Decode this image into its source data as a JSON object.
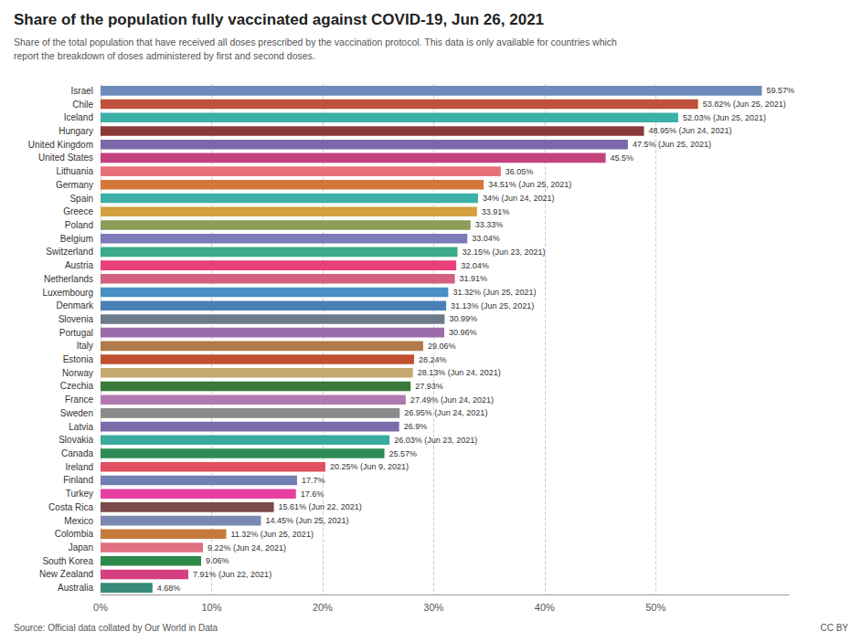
{
  "chart_data": {
    "type": "bar",
    "orientation": "horizontal",
    "title": "Share of the population fully vaccinated against COVID-19, Jun 26, 2021",
    "subtitle": "Share of the total population that have received all doses prescribed by the vaccination protocol. This data is only available for countries which\nreport the breakdown of doses administered by first and second doses.",
    "annotations": [
      "Source: Official data collated by Our World in Data",
      "CC BY"
    ],
    "categories": [
      "Israel",
      "Chile",
      "Iceland",
      "Hungary",
      "United Kingdom",
      "United States",
      "Lithuania",
      "Germany",
      "Spain",
      "Greece",
      "Poland",
      "Belgium",
      "Switzerland",
      "Austria",
      "Netherlands",
      "Luxembourg",
      "Denmark",
      "Slovenia",
      "Portugal",
      "Italy",
      "Estonia",
      "Norway",
      "Czechia",
      "France",
      "Sweden",
      "Latvia",
      "Slovakia",
      "Canada",
      "Ireland",
      "Finland",
      "Turkey",
      "Costa Rica",
      "Mexico",
      "Colombia",
      "Japan",
      "South Korea",
      "New Zealand",
      "Australia"
    ],
    "values": [
      59.57,
      53.82,
      52.03,
      48.95,
      47.5,
      45.5,
      36.05,
      34.51,
      34.0,
      33.91,
      33.33,
      33.04,
      32.15,
      32.04,
      31.91,
      31.32,
      31.13,
      30.99,
      30.96,
      29.06,
      28.24,
      28.13,
      27.93,
      27.49,
      26.95,
      26.9,
      26.03,
      25.57,
      20.25,
      17.7,
      17.6,
      15.61,
      14.45,
      11.32,
      9.22,
      9.06,
      7.91,
      4.68
    ],
    "value_labels": [
      "59.57%",
      "53.82% (Jun 25, 2021)",
      "52.03% (Jun 25, 2021)",
      "48.95% (Jun 24, 2021)",
      "47.5% (Jun 25, 2021)",
      "45.5%",
      "36.05%",
      "34.51% (Jun 25, 2021)",
      "34% (Jun 24, 2021)",
      "33.91%",
      "33.33%",
      "33.04%",
      "32.15% (Jun 23, 2021)",
      "32.04%",
      "31.91%",
      "31.32% (Jun 25, 2021)",
      "31.13% (Jun 25, 2021)",
      "30.99%",
      "30.96%",
      "29.06%",
      "28.24%",
      "28.13% (Jun 24, 2021)",
      "27.93%",
      "27.49% (Jun 24, 2021)",
      "26.95% (Jun 24, 2021)",
      "26.9%",
      "26.03% (Jun 23, 2021)",
      "25.57%",
      "20.25% (Jun 9, 2021)",
      "17.7%",
      "17.6%",
      "15.61% (Jun 22, 2021)",
      "14.45% (Jun 25, 2021)",
      "11.32% (Jun 25, 2021)",
      "9.22% (Jun 24, 2021)",
      "9.06%",
      "7.91% (Jun 22, 2021)",
      "4.68%"
    ],
    "data_labels": true,
    "colors": [
      "#6b8cba",
      "#c0513a",
      "#3db0a8",
      "#8b3a3a",
      "#7b68aa",
      "#c4417e",
      "#e8707a",
      "#d4773a",
      "#3db0a8",
      "#d4a040",
      "#8a9e5a",
      "#7b7bba",
      "#3aaa8a",
      "#e8407a",
      "#d46080",
      "#4a8fc4",
      "#4a7fb5",
      "#6b7b8a",
      "#9b6baa",
      "#b07a4a",
      "#c05030",
      "#c4a870",
      "#3a7a3a",
      "#b07ab0",
      "#8a8a8a",
      "#7b6baa",
      "#3aaaa0",
      "#2e8b57",
      "#e05060",
      "#7080b0",
      "#e840a0",
      "#7b4a4a",
      "#7b8ab0",
      "#c47a3a",
      "#e07080",
      "#2e8b4a",
      "#d44080",
      "#3a8a7a"
    ],
    "xlim": [
      0,
      62
    ],
    "xticks": [
      {
        "value": 0,
        "label": "0%"
      },
      {
        "value": 10,
        "label": "10%"
      },
      {
        "value": 20,
        "label": "20%"
      },
      {
        "value": 30,
        "label": "30%"
      },
      {
        "value": 40,
        "label": "40%"
      },
      {
        "value": 50,
        "label": "50%"
      }
    ],
    "grid": true
  }
}
